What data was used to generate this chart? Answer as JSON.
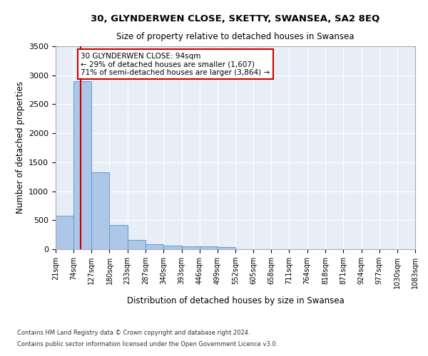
{
  "title1": "30, GLYNDERWEN CLOSE, SKETTY, SWANSEA, SA2 8EQ",
  "title2": "Size of property relative to detached houses in Swansea",
  "xlabel": "Distribution of detached houses by size in Swansea",
  "ylabel": "Number of detached properties",
  "annotation_line1": "30 GLYNDERWEN CLOSE: 94sqm",
  "annotation_line2": "← 29% of detached houses are smaller (1,607)",
  "annotation_line3": "71% of semi-detached houses are larger (3,864) →",
  "property_size_sqm": 94,
  "bin_edges": [
    21,
    74,
    127,
    180,
    233,
    287,
    340,
    393,
    446,
    499,
    552,
    605,
    658,
    711,
    764,
    818,
    871,
    924,
    977,
    1030,
    1083
  ],
  "bar_heights": [
    575,
    2900,
    1330,
    415,
    155,
    80,
    60,
    55,
    45,
    40,
    0,
    0,
    0,
    0,
    0,
    0,
    0,
    0,
    0,
    0
  ],
  "bar_color": "#aec6e8",
  "bar_edge_color": "#5a9fd4",
  "vline_color": "#cc0000",
  "vline_x": 94,
  "annotation_box_color": "#cc0000",
  "background_color": "#e8eef8",
  "ylim": [
    0,
    3500
  ],
  "yticks": [
    0,
    500,
    1000,
    1500,
    2000,
    2500,
    3000,
    3500
  ],
  "footer_line1": "Contains HM Land Registry data © Crown copyright and database right 2024.",
  "footer_line2": "Contains public sector information licensed under the Open Government Licence v3.0."
}
